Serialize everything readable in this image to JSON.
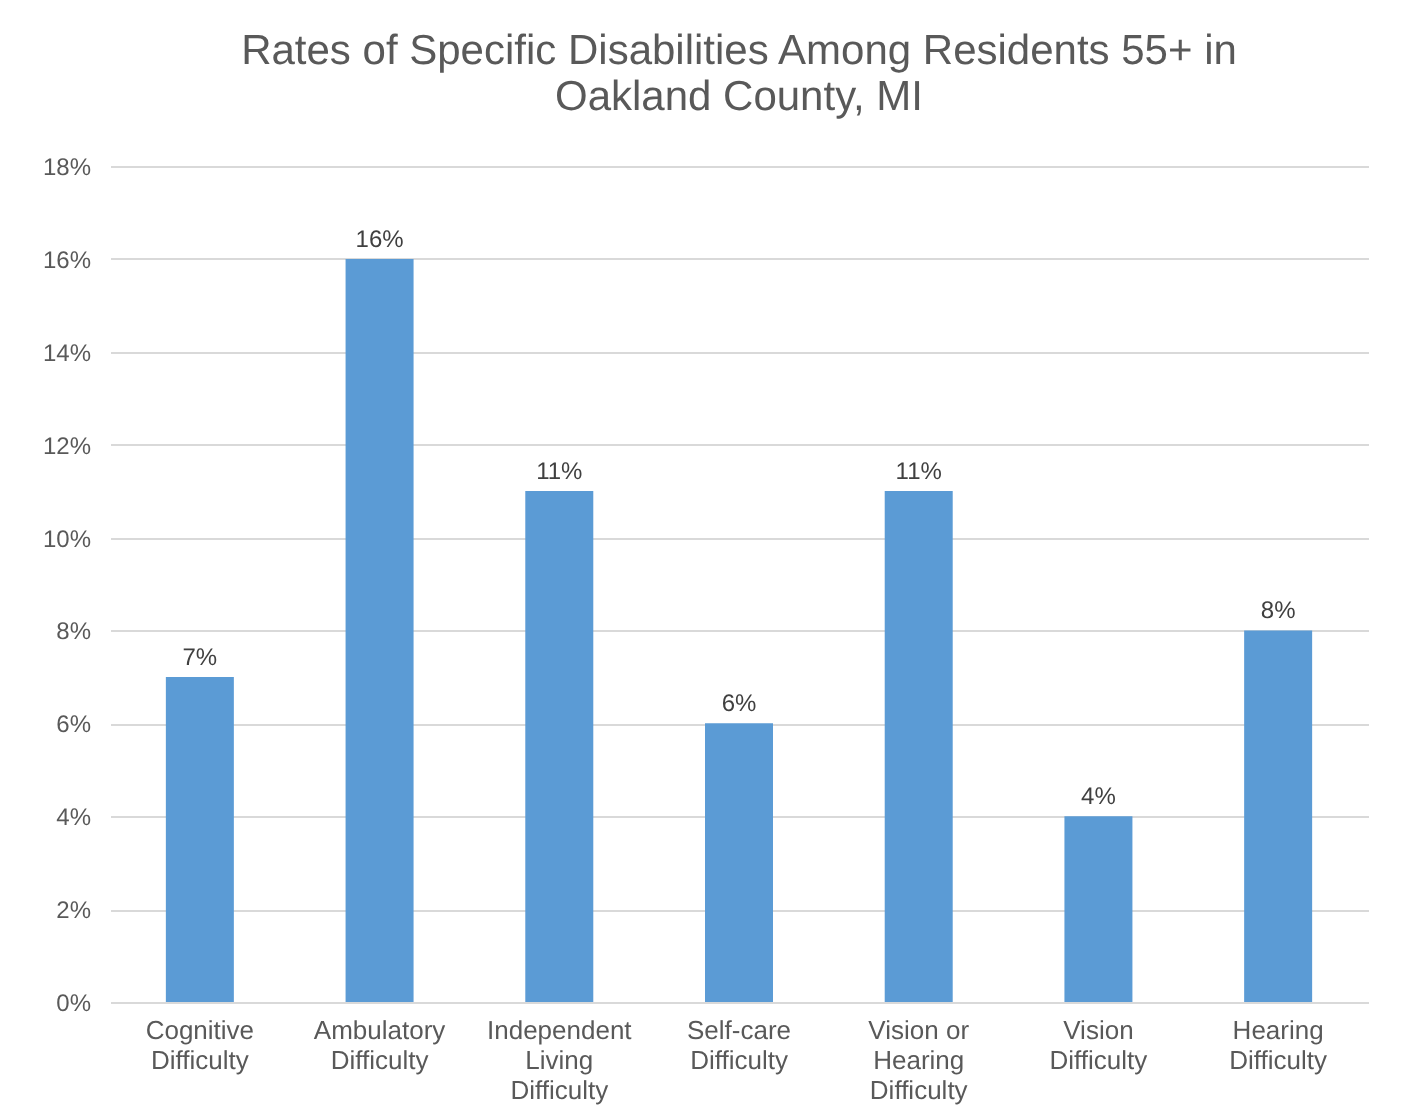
{
  "chart_data": {
    "type": "bar",
    "title": "Rates of Specific Disabilities Among Residents 55+ in Oakland County, MI",
    "categories": [
      "Cognitive Difficulty",
      "Ambulatory Difficulty",
      "Independent Living Difficulty",
      "Self-care Difficulty",
      "Vision or Hearing Difficulty",
      "Vision Difficulty",
      "Hearing Difficulty"
    ],
    "values": [
      7,
      16,
      11,
      6,
      11,
      4,
      8
    ],
    "value_labels": [
      "7%",
      "16%",
      "11%",
      "6%",
      "11%",
      "4%",
      "8%"
    ],
    "color": "#5b9bd5",
    "ylim": [
      0,
      18
    ],
    "yticks": [
      {
        "value": 0,
        "label": "0%"
      },
      {
        "value": 2,
        "label": "2%"
      },
      {
        "value": 4,
        "label": "4%"
      },
      {
        "value": 6,
        "label": "6%"
      },
      {
        "value": 8,
        "label": "8%"
      },
      {
        "value": 10,
        "label": "10%"
      },
      {
        "value": 12,
        "label": "12%"
      },
      {
        "value": 14,
        "label": "14%"
      },
      {
        "value": 16,
        "label": "16%"
      },
      {
        "value": 18,
        "label": "18%"
      }
    ],
    "grid": "y"
  }
}
